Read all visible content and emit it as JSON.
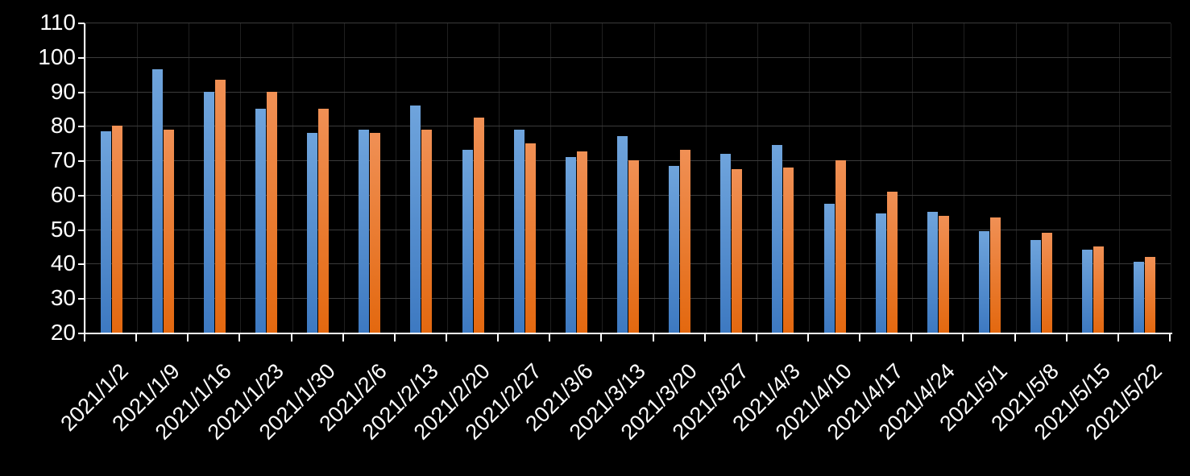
{
  "chart_data": {
    "type": "bar",
    "title": "",
    "categories": [
      "2021/1/2",
      "2021/1/9",
      "2021/1/16",
      "2021/1/23",
      "2021/1/30",
      "2021/2/6",
      "2021/2/13",
      "2021/2/20",
      "2021/2/27",
      "2021/3/6",
      "2021/3/13",
      "2021/3/20",
      "2021/3/27",
      "2021/4/3",
      "2021/4/10",
      "2021/4/17",
      "2021/4/24",
      "2021/5/1",
      "2021/5/8",
      "2021/5/15",
      "2021/5/22"
    ],
    "series": [
      {
        "name": "blue-series",
        "color_top": "#6FA4DC",
        "color_bottom": "#3D79C1",
        "values": [
          78.5,
          96.5,
          90,
          85,
          78,
          79,
          86,
          73,
          79,
          71,
          77,
          68.5,
          72,
          74.5,
          57.5,
          54.5,
          55,
          49.5,
          47,
          44,
          40.5
        ]
      },
      {
        "name": "orange-series",
        "color_top": "#F09055",
        "color_bottom": "#E3680F",
        "values": [
          80,
          79,
          93.5,
          90,
          85,
          78,
          79,
          82.5,
          75,
          72.5,
          70,
          73,
          67.5,
          68,
          70,
          61,
          54,
          53.5,
          49,
          45,
          42
        ]
      }
    ],
    "y_axis": {
      "min": 20,
      "max": 110,
      "step": 10,
      "tick_labels": [
        "110",
        "100",
        "90",
        "80",
        "70",
        "60",
        "50",
        "40",
        "30",
        "20"
      ]
    },
    "x_axis": {
      "label_rotation_deg": 45
    },
    "grid": {
      "horizontal": true,
      "vertical": true
    },
    "legend": "none",
    "colors": {
      "background": "#000000",
      "axis": "#FFFFFF",
      "text": "#FFFFFF",
      "gridline_horizontal": "#3B3B3B",
      "gridline_vertical": "#1F1F1F"
    }
  }
}
